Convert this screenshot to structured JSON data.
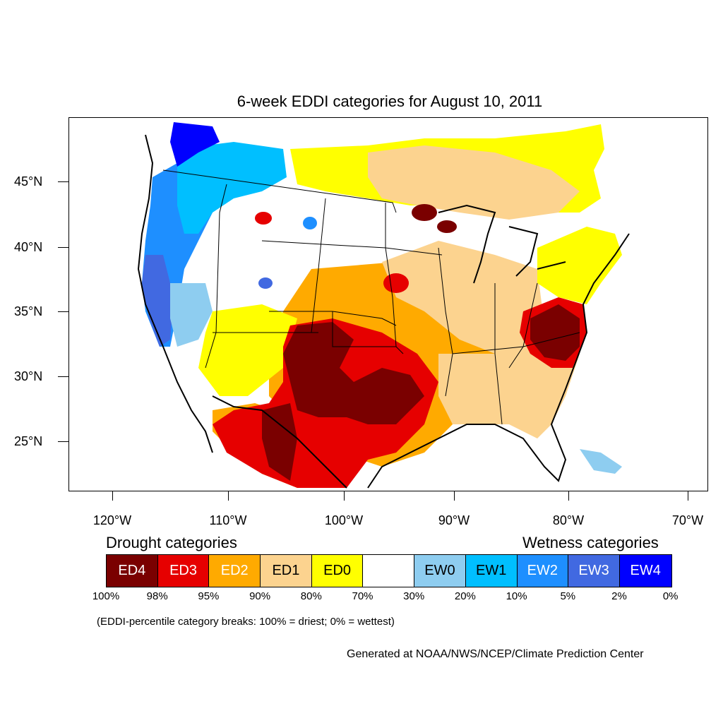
{
  "title": "6-week EDDI categories for August 10, 2011",
  "axes": {
    "lat_labels": [
      "45°N",
      "40°N",
      "35°N",
      "30°N",
      "25°N"
    ],
    "lon_labels": [
      "120°W",
      "110°W",
      "100°W",
      "90°W",
      "80°W",
      "70°W"
    ]
  },
  "legend": {
    "drought_heading": "Drought categories",
    "wetness_heading": "Wetness categories",
    "categories": [
      {
        "label": "ED4",
        "color": "#7a0000",
        "text_color": "#ffffff"
      },
      {
        "label": "ED3",
        "color": "#e60000",
        "text_color": "#ffffff"
      },
      {
        "label": "ED2",
        "color": "#ffaa00",
        "text_color": "#ffffff"
      },
      {
        "label": "ED1",
        "color": "#fcd38f",
        "text_color": "#000000"
      },
      {
        "label": "ED0",
        "color": "#ffff00",
        "text_color": "#000000"
      },
      {
        "label": "",
        "color": "#ffffff",
        "text_color": "#000000"
      },
      {
        "label": "EW0",
        "color": "#8ecdf0",
        "text_color": "#000000"
      },
      {
        "label": "EW1",
        "color": "#00bfff",
        "text_color": "#000000"
      },
      {
        "label": "EW2",
        "color": "#1e8fff",
        "text_color": "#ffffff"
      },
      {
        "label": "EW3",
        "color": "#4169e1",
        "text_color": "#ffffff"
      },
      {
        "label": "EW4",
        "color": "#0000ff",
        "text_color": "#ffffff"
      }
    ],
    "breaks": [
      "100%",
      "98%",
      "95%",
      "90%",
      "80%",
      "70%",
      "30%",
      "20%",
      "10%",
      "5%",
      "2%",
      "0%"
    ]
  },
  "note": "(EDDI-percentile category breaks: 100% = driest; 0% = wettest)",
  "credit": "Generated at NOAA/NWS/NCEP/Climate Prediction Center"
}
